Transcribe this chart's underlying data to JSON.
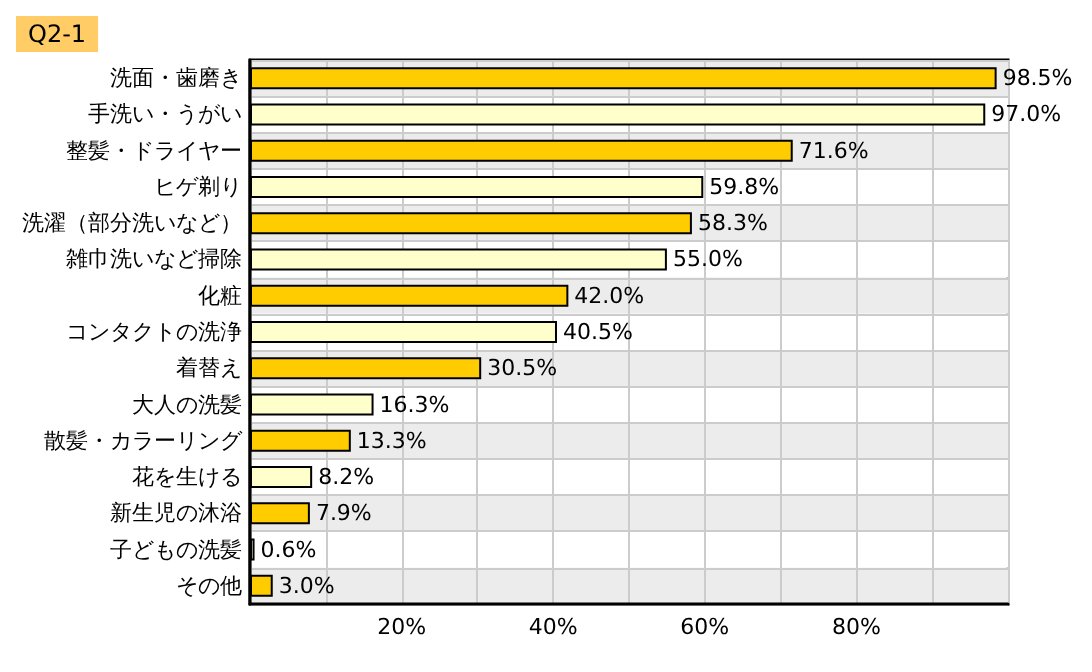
{
  "chart_data": {
    "type": "bar",
    "orientation": "horizontal",
    "title": "Q2-1",
    "categories": [
      "洗面・歯磨き",
      "手洗い・うがい",
      "整髪・ドライヤー",
      "ヒゲ剃り",
      "洗濯（部分洗いなど）",
      "雑巾洗いなど掃除",
      "化粧",
      "コンタクトの洗浄",
      "着替え",
      "大人の洗髪",
      "散髪・カラーリング",
      "花を生ける",
      "新生児の沐浴",
      "子どもの洗髪",
      "その他"
    ],
    "values": [
      98.5,
      97.0,
      71.6,
      59.8,
      58.3,
      55.0,
      42.0,
      40.5,
      30.5,
      16.3,
      13.3,
      8.2,
      7.9,
      0.6,
      3.0
    ],
    "colors": [
      "#ffcc00",
      "#ffffcc",
      "#ffcc00",
      "#ffffcc",
      "#ffcc00",
      "#ffffcc",
      "#ffcc00",
      "#ffffcc",
      "#ffcc00",
      "#ffffcc",
      "#ffcc00",
      "#ffffcc",
      "#ffcc00",
      "#ffffcc",
      "#ffcc00"
    ],
    "value_labels": [
      "98.5%",
      "97.0%",
      "71.6%",
      "59.8%",
      "58.3%",
      "55.0%",
      "42.0%",
      "40.5%",
      "30.5%",
      "16.3%",
      "13.3%",
      "8.2%",
      "7.9%",
      "0.6%",
      "3.0%"
    ],
    "xlim": [
      0,
      100
    ],
    "xticks": [
      {
        "value": 0,
        "label": null
      },
      {
        "value": 10,
        "label": null
      },
      {
        "value": 20,
        "label": "20%"
      },
      {
        "value": 30,
        "label": null
      },
      {
        "value": 40,
        "label": "40%"
      },
      {
        "value": 50,
        "label": null
      },
      {
        "value": 60,
        "label": "60%"
      },
      {
        "value": 70,
        "label": null
      },
      {
        "value": 80,
        "label": "80%"
      },
      {
        "value": 90,
        "label": null
      },
      {
        "value": 100,
        "label": null
      }
    ],
    "grid": "x"
  }
}
